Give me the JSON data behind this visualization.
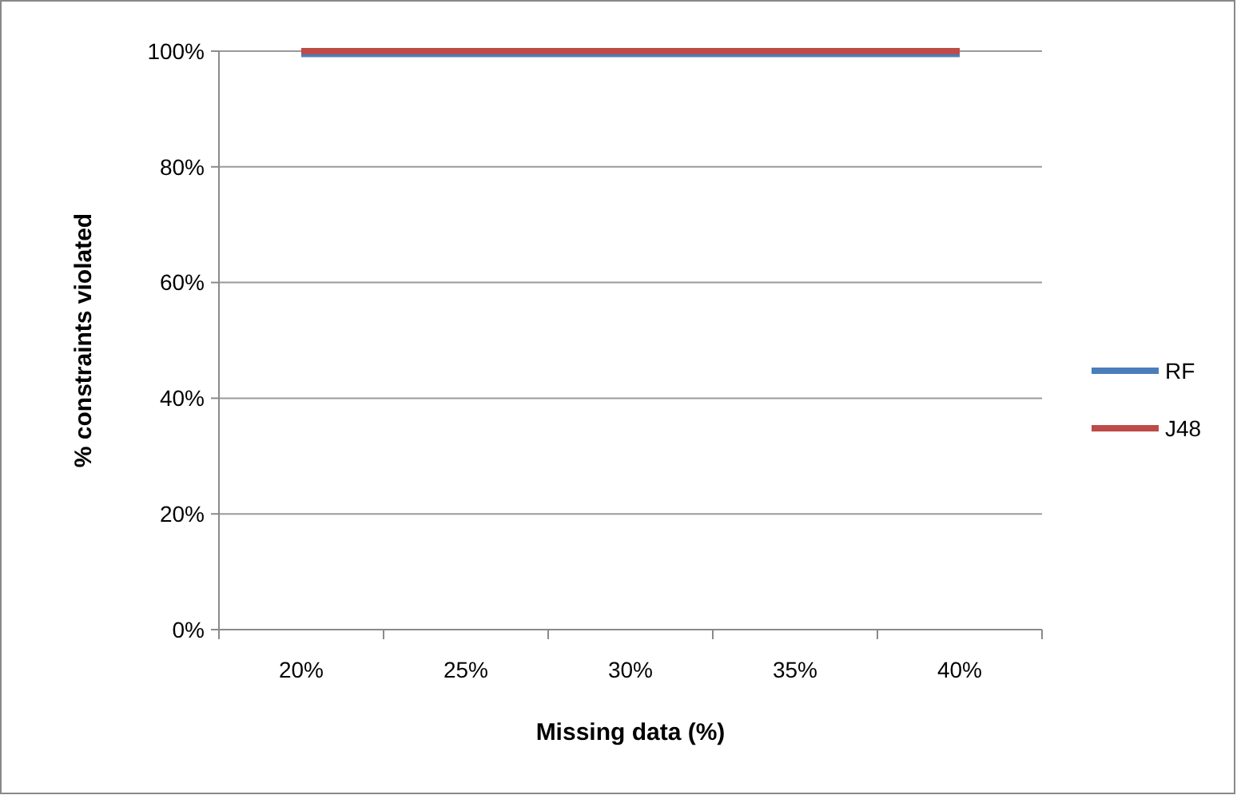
{
  "chart_data": {
    "type": "line",
    "xlabel": "Missing data (%)",
    "ylabel": "% constraints violated",
    "categories": [
      "20%",
      "25%",
      "30%",
      "35%",
      "40%"
    ],
    "series": [
      {
        "name": "RF",
        "color": "#4a7ebb",
        "values": [
          99.5,
          99.5,
          99.5,
          99.5,
          99.5
        ]
      },
      {
        "name": "J48",
        "color": "#be4b48",
        "values": [
          100,
          100,
          100,
          100,
          100
        ]
      }
    ],
    "ylim": [
      0,
      100
    ],
    "yticks": [
      {
        "value": 0,
        "label": "0%"
      },
      {
        "value": 20,
        "label": "20%"
      },
      {
        "value": 40,
        "label": "40%"
      },
      {
        "value": 60,
        "label": "60%"
      },
      {
        "value": 80,
        "label": "80%"
      },
      {
        "value": 100,
        "label": "100%"
      }
    ],
    "grid": "y",
    "legend": "right",
    "marker": "none",
    "line_style": "solid"
  }
}
